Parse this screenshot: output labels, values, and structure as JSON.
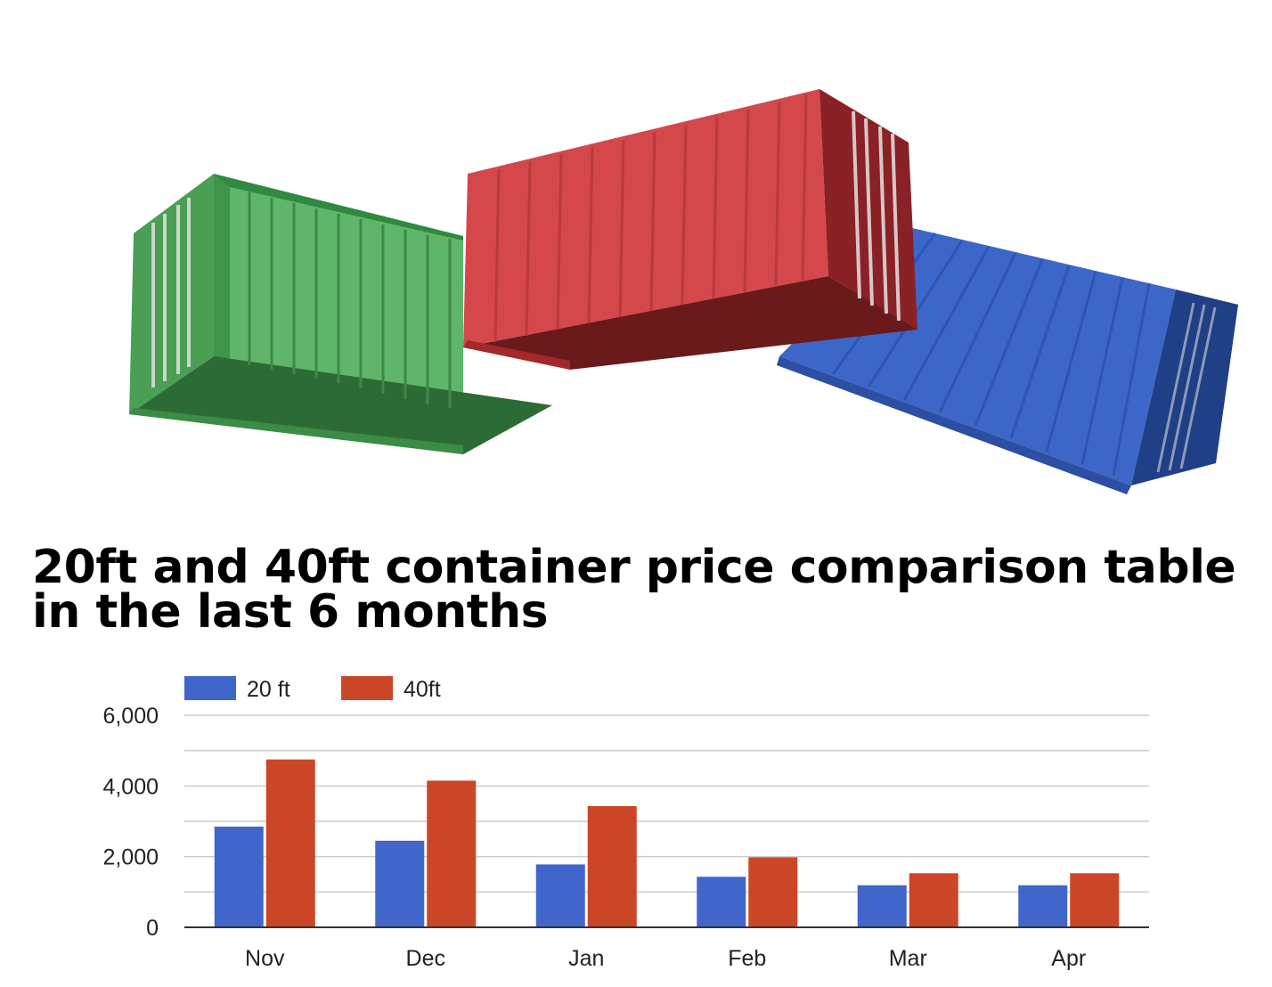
{
  "title_lines": [
    "20ft and 40ft container price comparison table",
    "in the last 6 months"
  ],
  "hero_image": {
    "containers": [
      "green-container",
      "red-container",
      "blue-container"
    ]
  },
  "chart_data": {
    "type": "bar",
    "categories": [
      "Nov",
      "Dec",
      "Jan",
      "Feb",
      "Mar",
      "Apr"
    ],
    "series": [
      {
        "name": "20 ft",
        "color": "#4166cb",
        "values": [
          2850,
          2450,
          1780,
          1430,
          1190,
          1190
        ]
      },
      {
        "name": "40ft",
        "color": "#cb4627",
        "values": [
          4750,
          4150,
          3430,
          1980,
          1530,
          1530
        ]
      }
    ],
    "ylim": [
      0,
      6000
    ],
    "yticks": [
      "0",
      "2,000",
      "4,000",
      "6,000"
    ],
    "grid": true,
    "legend_position": "top-left",
    "xlabel": "",
    "ylabel": ""
  }
}
